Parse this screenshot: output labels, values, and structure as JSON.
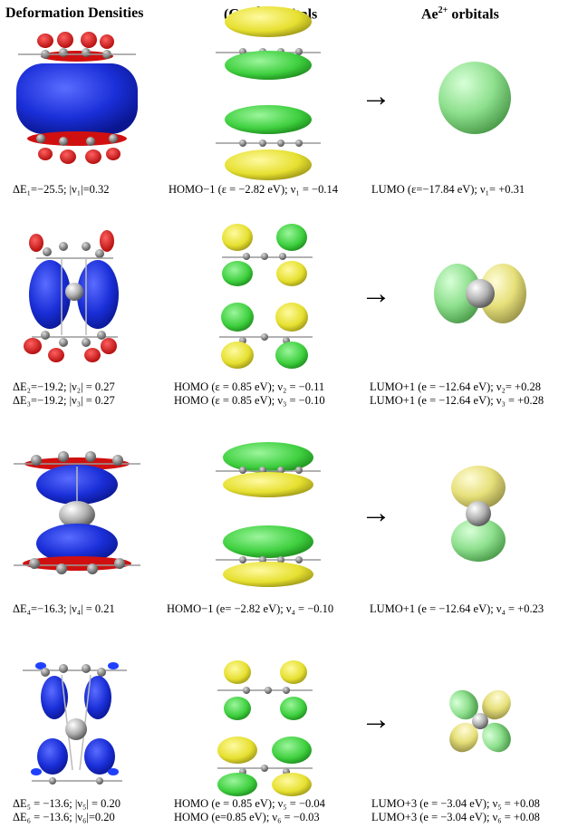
{
  "headers": {
    "col1": "Deformation Densities",
    "col2_prefix": "(Cp)",
    "col2_sub": "2",
    "col2_sup": "2−",
    "col2_suffix": " orbitals",
    "col3_prefix": "Ae",
    "col3_sup": "2+",
    "col3_suffix": " orbitals"
  },
  "arrow_glyph": "→",
  "rows": [
    {
      "dens": [
        "ΔE₁=−25.5; |ν₁|=0.32"
      ],
      "cp": [
        "HOMO−1 (ε = −2.82 eV); ν₁ = −0.14"
      ],
      "ae": [
        "LUMO (ε=−17.84 eV); ν₁= +0.31"
      ]
    },
    {
      "dens": [
        "ΔE₂=−19.2; |ν₂| = 0.27",
        "ΔE₃=−19.2; |ν₃| = 0.27"
      ],
      "cp": [
        "HOMO (ε = 0.85 eV); ν₂ = −0.11",
        "HOMO (ε = 0.85 eV); ν₃ = −0.10"
      ],
      "ae": [
        "LUMO+1 (e = −12.64 eV); ν₂= +0.28",
        "LUMO+1 (e = −12.64 eV); ν₃ = +0.28"
      ]
    },
    {
      "dens": [
        "ΔE₄=−16.3; |ν₄| = 0.21"
      ],
      "cp": [
        "HOMO−1 (e= −2.82 eV); ν₄ = −0.10"
      ],
      "ae": [
        "LUMO+1 (e = −12.64 eV); ν₄ = +0.23"
      ]
    },
    {
      "dens": [
        "ΔE₅ = −13.6; |ν₅| = 0.20",
        "ΔE₆ = −13.6; |ν₆|=0.20"
      ],
      "cp": [
        "HOMO (e = 0.85 eV); ν₅ = −0.04",
        "HOMO (e=0.85 eV); ν₆ = −0.03"
      ],
      "ae": [
        "LUMO+3 (e = −3.04 eV); ν₅ = +0.08",
        "LUMO+3 (e = −3.04 eV); ν₆ = +0.08"
      ]
    }
  ],
  "colors": {
    "density_negative": "#1a2fd8",
    "density_positive": "#e01010",
    "orbital_green": "#3fd03f",
    "orbital_yellow": "#e6e030",
    "ae_green": "#8fe08f",
    "ae_yellow": "#e6e07a",
    "atom_gray": "#9a9a9a"
  }
}
